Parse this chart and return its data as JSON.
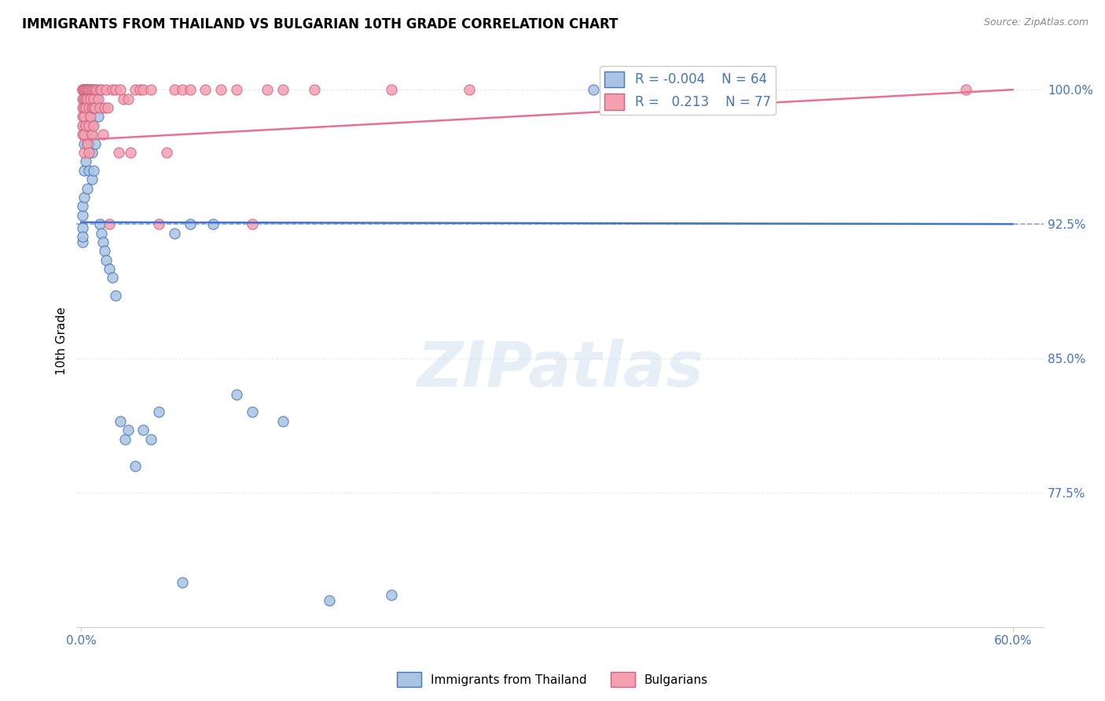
{
  "title": "IMMIGRANTS FROM THAILAND VS BULGARIAN 10TH GRADE CORRELATION CHART",
  "source": "Source: ZipAtlas.com",
  "ylabel": "10th Grade",
  "thailand_R": "-0.004",
  "thailand_N": "64",
  "bulgarian_R": "0.213",
  "bulgarian_N": "77",
  "thailand_color": "#a8c4e0",
  "bulgarian_color": "#f4a0b0",
  "thailand_line_color": "#4472c4",
  "bulgarian_line_color": "#e87090",
  "legend_label_thailand": "Immigrants from Thailand",
  "legend_label_bulgarian": "Bulgarians",
  "watermark": "ZIPatlas",
  "hline_y": 92.5,
  "hline_color": "#4472c4",
  "thailand_trend": [
    92.6,
    92.5
  ],
  "bulgarian_trend": [
    97.2,
    100.0
  ],
  "trend_x": [
    0.0,
    60.0
  ],
  "x_lim": [
    -0.3,
    62.0
  ],
  "y_lim": [
    70.0,
    102.0
  ],
  "y_ticks": [
    77.5,
    85.0,
    92.5,
    100.0
  ],
  "y_tick_labels": [
    "77.5%",
    "85.0%",
    "92.5%",
    "100.0%"
  ],
  "x_ticks": [
    0.0,
    60.0
  ],
  "x_tick_labels": [
    "0.0%",
    "60.0%"
  ],
  "grid_color": "#cccccc",
  "thailand_x": [
    0.1,
    0.1,
    0.1,
    0.1,
    0.1,
    0.2,
    0.2,
    0.2,
    0.2,
    0.2,
    0.2,
    0.3,
    0.3,
    0.3,
    0.3,
    0.3,
    0.3,
    0.4,
    0.4,
    0.4,
    0.4,
    0.4,
    0.5,
    0.5,
    0.5,
    0.5,
    0.6,
    0.6,
    0.6,
    0.7,
    0.7,
    0.7,
    0.7,
    0.8,
    0.8,
    0.9,
    0.9,
    1.0,
    1.1,
    1.2,
    1.3,
    1.4,
    1.5,
    1.6,
    1.8,
    2.0,
    2.2,
    2.5,
    2.8,
    3.0,
    3.5,
    4.0,
    4.5,
    5.0,
    6.0,
    6.5,
    7.0,
    8.5,
    10.0,
    11.0,
    13.0,
    16.0,
    20.0,
    33.0
  ],
  "thailand_y": [
    92.3,
    93.0,
    91.5,
    91.8,
    93.5,
    100.0,
    99.5,
    98.0,
    97.0,
    95.5,
    94.0,
    100.0,
    99.5,
    99.0,
    98.5,
    97.5,
    96.0,
    100.0,
    99.8,
    98.5,
    97.0,
    94.5,
    99.5,
    98.5,
    97.0,
    95.5,
    100.0,
    99.0,
    97.5,
    99.5,
    98.0,
    96.5,
    95.0,
    99.0,
    95.5,
    99.0,
    97.0,
    99.5,
    98.5,
    92.5,
    92.0,
    91.5,
    91.0,
    90.5,
    90.0,
    89.5,
    88.5,
    81.5,
    80.5,
    81.0,
    79.0,
    81.0,
    80.5,
    82.0,
    92.0,
    72.5,
    92.5,
    92.5,
    83.0,
    82.0,
    81.5,
    71.5,
    71.8,
    100.0
  ],
  "bulgarian_x": [
    0.1,
    0.1,
    0.1,
    0.1,
    0.1,
    0.1,
    0.1,
    0.1,
    0.2,
    0.2,
    0.2,
    0.2,
    0.2,
    0.2,
    0.2,
    0.3,
    0.3,
    0.3,
    0.3,
    0.3,
    0.4,
    0.4,
    0.4,
    0.4,
    0.5,
    0.5,
    0.5,
    0.5,
    0.5,
    0.6,
    0.6,
    0.6,
    0.7,
    0.7,
    0.7,
    0.8,
    0.8,
    0.8,
    0.8,
    0.9,
    0.9,
    1.0,
    1.1,
    1.2,
    1.2,
    1.3,
    1.4,
    1.5,
    1.6,
    1.7,
    1.8,
    2.0,
    2.2,
    2.4,
    2.5,
    2.7,
    3.0,
    3.2,
    3.5,
    3.8,
    4.0,
    4.5,
    5.0,
    5.5,
    6.0,
    6.5,
    7.0,
    8.0,
    9.0,
    10.0,
    11.0,
    12.0,
    13.0,
    15.0,
    20.0,
    25.0,
    57.0
  ],
  "bulgarian_y": [
    100.0,
    100.0,
    100.0,
    99.5,
    99.0,
    98.5,
    98.0,
    97.5,
    100.0,
    100.0,
    99.5,
    99.0,
    98.5,
    97.5,
    96.5,
    100.0,
    100.0,
    99.5,
    99.0,
    98.0,
    100.0,
    100.0,
    99.5,
    97.0,
    100.0,
    100.0,
    99.0,
    98.0,
    96.5,
    100.0,
    99.5,
    98.5,
    100.0,
    99.0,
    97.5,
    100.0,
    99.5,
    99.0,
    98.0,
    100.0,
    99.0,
    100.0,
    99.5,
    100.0,
    99.0,
    100.0,
    97.5,
    99.0,
    100.0,
    99.0,
    92.5,
    100.0,
    100.0,
    96.5,
    100.0,
    99.5,
    99.5,
    96.5,
    100.0,
    100.0,
    100.0,
    100.0,
    92.5,
    96.5,
    100.0,
    100.0,
    100.0,
    100.0,
    100.0,
    100.0,
    92.5,
    100.0,
    100.0,
    100.0,
    100.0,
    100.0,
    100.0
  ]
}
